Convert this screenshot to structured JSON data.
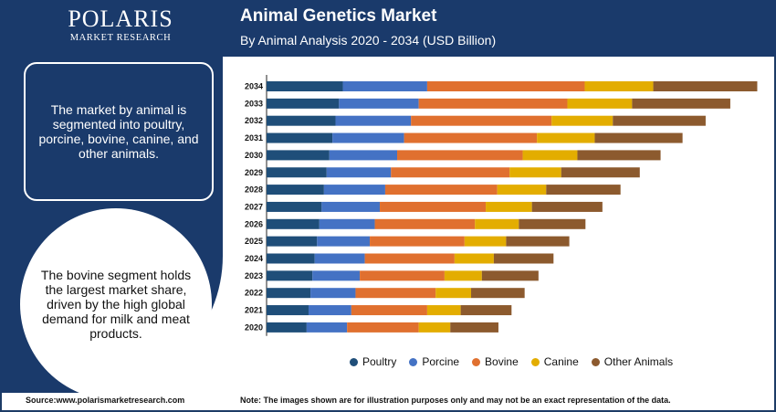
{
  "header": {
    "logo_name": "POLARIS",
    "logo_sub": "MARKET RESEARCH",
    "title": "Animal Genetics Market",
    "subtitle": "By Animal Analysis 2020 - 2034 (USD Billion)"
  },
  "panel": {
    "box_text": "The market by animal is segmented into poultry, porcine, bovine, canine, and other animals.",
    "circle_text": "The bovine segment holds the largest market share, driven by the high global demand for milk and meat products."
  },
  "footer": {
    "source": "Source:www.polarismarketresearch.com",
    "note": "Note: The images shown are for illustration purposes only and may not be an exact representation of the data."
  },
  "colors": {
    "brand": "#1a3a6b",
    "poultry": "#1f4e79",
    "porcine": "#4472c4",
    "bovine": "#e0702f",
    "canine": "#e3ad00",
    "other": "#8c5a2e"
  },
  "chart_data": {
    "type": "bar",
    "orientation": "horizontal",
    "stacked": true,
    "title": "Animal Genetics Market",
    "subtitle": "By Animal Analysis 2020 - 2034 (USD Billion)",
    "legend_position": "bottom",
    "grid": false,
    "categories": [
      "2034",
      "2033",
      "2032",
      "2031",
      "2030",
      "2029",
      "2028",
      "2027",
      "2026",
      "2025",
      "2024",
      "2023",
      "2022",
      "2021",
      "2020"
    ],
    "series": [
      {
        "name": "Poultry",
        "values": [
          1.98,
          1.88,
          1.79,
          1.71,
          1.63,
          1.56,
          1.49,
          1.43,
          1.37,
          1.31,
          1.25,
          1.19,
          1.14,
          1.09,
          1.04
        ]
      },
      {
        "name": "Porcine",
        "values": [
          2.19,
          2.07,
          1.96,
          1.86,
          1.76,
          1.67,
          1.59,
          1.51,
          1.44,
          1.37,
          1.3,
          1.23,
          1.17,
          1.11,
          1.05
        ]
      },
      {
        "name": "Bovine",
        "values": [
          4.09,
          3.86,
          3.65,
          3.45,
          3.26,
          3.08,
          2.91,
          2.75,
          2.6,
          2.46,
          2.33,
          2.2,
          2.08,
          1.97,
          1.86
        ]
      },
      {
        "name": "Canine",
        "values": [
          1.78,
          1.68,
          1.59,
          1.5,
          1.42,
          1.34,
          1.27,
          1.2,
          1.14,
          1.08,
          1.02,
          0.97,
          0.92,
          0.87,
          0.82
        ]
      },
      {
        "name": "Other Animals",
        "values": [
          2.7,
          2.55,
          2.41,
          2.28,
          2.16,
          2.04,
          1.93,
          1.83,
          1.73,
          1.64,
          1.55,
          1.47,
          1.39,
          1.32,
          1.25
        ]
      }
    ],
    "xlim": [
      0,
      12.8
    ]
  }
}
